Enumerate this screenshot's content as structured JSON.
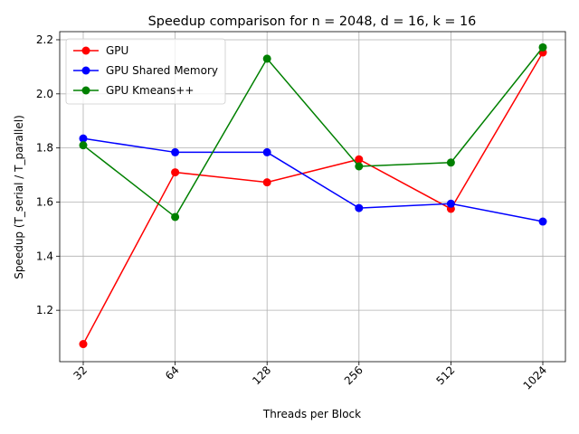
{
  "chart_data": {
    "type": "line",
    "title": "Speedup comparison for n = 2048, d = 16, k = 16",
    "xlabel": "Threads per Block",
    "ylabel": "Speedup (T_serial / T_parallel)",
    "categories": [
      "32",
      "64",
      "128",
      "256",
      "512",
      "1024"
    ],
    "ylim": [
      1.01,
      2.23
    ],
    "yticks": [
      "1.2",
      "1.4",
      "1.6",
      "1.8",
      "2.0",
      "2.2"
    ],
    "grid": true,
    "legend_position": "top-left",
    "series": [
      {
        "name": "GPU",
        "color": "#ff0000",
        "values": [
          1.075,
          1.71,
          1.673,
          1.758,
          1.575,
          2.153
        ]
      },
      {
        "name": "GPU Shared Memory",
        "color": "#0000ff",
        "values": [
          1.835,
          1.784,
          1.784,
          1.578,
          1.594,
          1.528
        ]
      },
      {
        "name": "GPU Kmeans++",
        "color": "#008000",
        "values": [
          1.81,
          1.545,
          2.13,
          1.732,
          1.746,
          2.172
        ]
      }
    ]
  }
}
